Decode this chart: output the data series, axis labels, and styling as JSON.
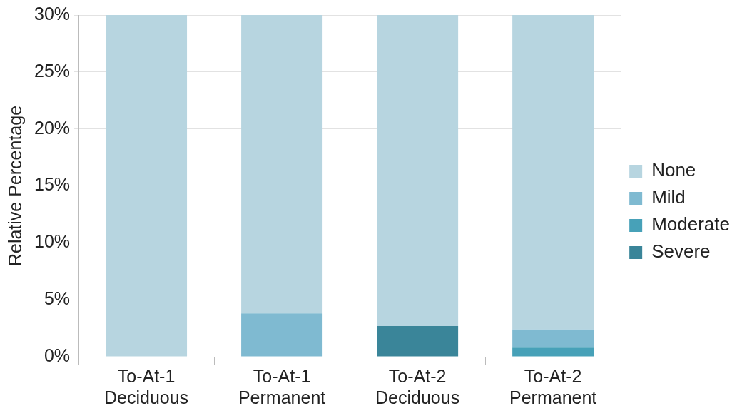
{
  "chart_data": {
    "type": "bar",
    "stacked": true,
    "ylabel": "Relative Percentage",
    "categories": [
      "To-At-1 Deciduous",
      "To-At-1 Permanent",
      "To-At-2 Deciduous",
      "To-At-2 Permanent"
    ],
    "series": [
      {
        "name": "Severe",
        "color": "#3a8599",
        "values": [
          null,
          null,
          2.7,
          null
        ]
      },
      {
        "name": "Moderate",
        "color": "#47a1b8",
        "values": [
          null,
          null,
          null,
          0.8
        ]
      },
      {
        "name": "Mild",
        "color": "#7fbad1",
        "values": [
          null,
          3.8,
          null,
          1.6
        ]
      },
      {
        "name": "None",
        "color": "#b7d5e0",
        "values": [
          30,
          26.2,
          27.3,
          27.6
        ]
      }
    ],
    "ylim": [
      0,
      30
    ],
    "yticks": [
      {
        "value": 0,
        "label": "0%"
      },
      {
        "value": 5,
        "label": "5%"
      },
      {
        "value": 10,
        "label": "10%"
      },
      {
        "value": 15,
        "label": "15%"
      },
      {
        "value": 20,
        "label": "20%"
      },
      {
        "value": 25,
        "label": "25%"
      },
      {
        "value": 30,
        "label": "30%"
      }
    ],
    "grid": "y",
    "legend": "right"
  }
}
